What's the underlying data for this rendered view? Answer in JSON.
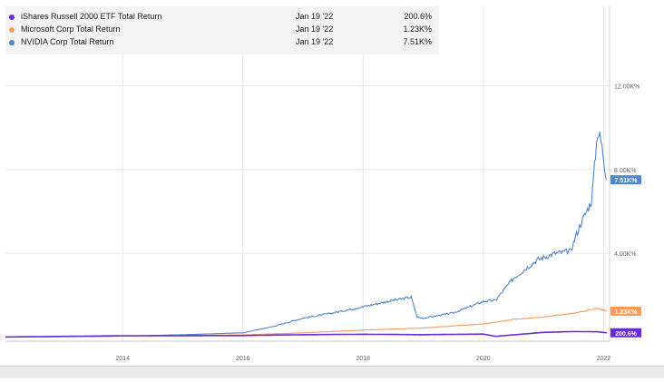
{
  "legend": {
    "items": [
      {
        "name": "iShares Russell 2000 ETF Total Return",
        "date": "Jan 19 '22",
        "value": "200.6%",
        "color": "#6a2bd1"
      },
      {
        "name": "Microsoft Corp Total Return",
        "date": "Jan 19 '22",
        "value": "1.23K%",
        "color": "#f79a5a"
      },
      {
        "name": "NVIDIA Corp Total Return",
        "date": "Jan 19 '22",
        "value": "7.51K%",
        "color": "#4f86cf"
      }
    ]
  },
  "chart_data": {
    "type": "line",
    "x_ticks": [
      "2014",
      "2016",
      "2018",
      "2020",
      "2022"
    ],
    "y_ticks": [
      "4.00K%",
      "8.00K%",
      "12.00K%"
    ],
    "y_tick_values": [
      4000,
      8000,
      12000
    ],
    "xlim": [
      2012.05,
      2022.1
    ],
    "ylim": [
      -200,
      15800
    ],
    "grid": true,
    "series": [
      {
        "name": "NVIDIA Corp Total Return",
        "color": "#4f86cf",
        "end_label": "7.51K%",
        "points": [
          [
            2012.05,
            0
          ],
          [
            2013.0,
            10
          ],
          [
            2014.0,
            40
          ],
          [
            2015.0,
            110
          ],
          [
            2016.0,
            200
          ],
          [
            2016.5,
            500
          ],
          [
            2017.0,
            900
          ],
          [
            2017.5,
            1150
          ],
          [
            2018.0,
            1450
          ],
          [
            2018.5,
            1750
          ],
          [
            2018.8,
            1900
          ],
          [
            2018.9,
            950
          ],
          [
            2019.0,
            900
          ],
          [
            2019.5,
            1150
          ],
          [
            2020.0,
            1700
          ],
          [
            2020.2,
            1750
          ],
          [
            2020.5,
            2800
          ],
          [
            2020.9,
            3700
          ],
          [
            2021.2,
            4000
          ],
          [
            2021.45,
            4100
          ],
          [
            2021.6,
            5300
          ],
          [
            2021.8,
            6500
          ],
          [
            2021.9,
            9800
          ],
          [
            2021.95,
            9500
          ],
          [
            2022.0,
            8600
          ],
          [
            2022.05,
            7510
          ]
        ]
      },
      {
        "name": "Microsoft Corp Total Return",
        "color": "#f79a5a",
        "end_label": "1.23K%",
        "points": [
          [
            2012.05,
            0
          ],
          [
            2014.0,
            40
          ],
          [
            2016.0,
            100
          ],
          [
            2017.0,
            200
          ],
          [
            2018.0,
            330
          ],
          [
            2019.0,
            430
          ],
          [
            2020.0,
            620
          ],
          [
            2020.5,
            840
          ],
          [
            2021.0,
            950
          ],
          [
            2021.5,
            1140
          ],
          [
            2021.9,
            1370
          ],
          [
            2022.05,
            1230
          ]
        ]
      },
      {
        "name": "iShares Russell 2000 ETF Total Return",
        "color": "#6a2bd1",
        "end_label": "200.6%",
        "points": [
          [
            2012.05,
            0
          ],
          [
            2014.0,
            60
          ],
          [
            2016.0,
            70
          ],
          [
            2017.0,
            110
          ],
          [
            2018.0,
            130
          ],
          [
            2019.0,
            110
          ],
          [
            2020.0,
            140
          ],
          [
            2020.2,
            30
          ],
          [
            2021.0,
            220
          ],
          [
            2021.5,
            260
          ],
          [
            2021.9,
            250
          ],
          [
            2022.05,
            200.6
          ]
        ]
      }
    ]
  }
}
